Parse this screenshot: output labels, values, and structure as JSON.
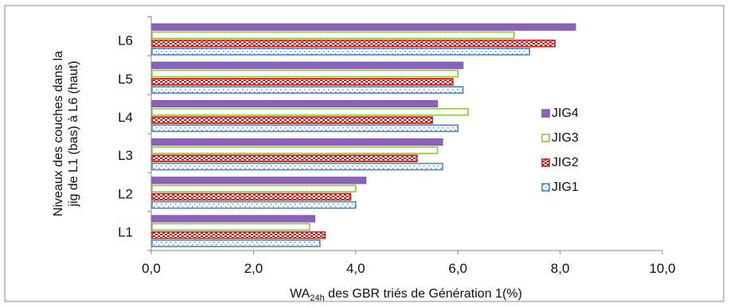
{
  "chart_data": {
    "type": "bar",
    "orientation": "horizontal",
    "title": "",
    "categories": [
      "L1",
      "L2",
      "L3",
      "L4",
      "L5",
      "L6"
    ],
    "series": [
      {
        "name": "JIG1",
        "values": [
          3.3,
          4.0,
          5.7,
          6.0,
          6.1,
          7.4
        ]
      },
      {
        "name": "JIG2",
        "values": [
          3.4,
          3.9,
          5.2,
          5.5,
          5.9,
          7.9
        ]
      },
      {
        "name": "JIG3",
        "values": [
          3.1,
          4.0,
          5.6,
          6.2,
          6.0,
          7.1
        ]
      },
      {
        "name": "JIG4",
        "values": [
          3.2,
          4.2,
          5.7,
          5.6,
          6.1,
          8.3
        ]
      }
    ],
    "xlim": [
      0,
      10
    ],
    "xticks": [
      "0,0",
      "2,0",
      "4,0",
      "6,0",
      "8,0",
      "10,0"
    ],
    "xlabel": {
      "main": "WA",
      "subscript": "24h",
      "rest": " des GBR triés de Génération 1(%)"
    },
    "ylabel_lines": [
      "Niveaux des couches dans la",
      "jig de L1 (bas) à  L6  (haut)"
    ],
    "grid": false,
    "legend_position": "right",
    "legend_order": [
      "JIG4",
      "JIG3",
      "JIG2",
      "JIG1"
    ],
    "colors": {
      "JIG1": "#4a87c7",
      "JIG2": "#cc1f1a",
      "JIG3": "#8cc63f",
      "JIG4": "#8158b0",
      "JIG4_fill": "#8b64b8",
      "axis": "#888888",
      "frame": "#8a8a8a"
    }
  }
}
